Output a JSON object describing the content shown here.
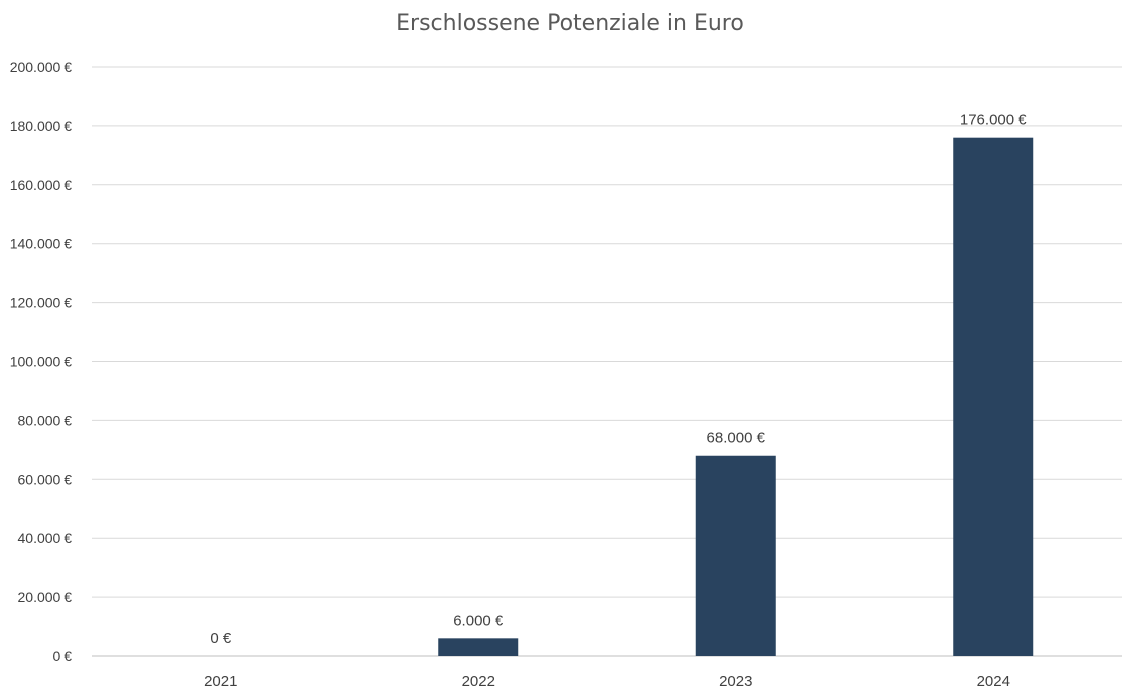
{
  "chart_data": {
    "type": "bar",
    "title": "Erschlossene Potenziale in Euro",
    "categories": [
      "2021",
      "2022",
      "2023",
      "2024"
    ],
    "values": [
      0,
      6000,
      68000,
      176000
    ],
    "data_labels": [
      "0 €",
      "6.000 €",
      "68.000 €",
      "176.000 €"
    ],
    "ylim": [
      0,
      200000
    ],
    "y_ticks": [
      {
        "value": 0,
        "label": "0 €"
      },
      {
        "value": 20000,
        "label": "20.000 €"
      },
      {
        "value": 40000,
        "label": "40.000 €"
      },
      {
        "value": 60000,
        "label": "60.000 €"
      },
      {
        "value": 80000,
        "label": "80.000 €"
      },
      {
        "value": 100000,
        "label": "100.000 €"
      },
      {
        "value": 120000,
        "label": "120.000 €"
      },
      {
        "value": 140000,
        "label": "140.000 €"
      },
      {
        "value": 160000,
        "label": "160.000 €"
      },
      {
        "value": 180000,
        "label": "180.000 €"
      },
      {
        "value": 200000,
        "label": "200.000 €"
      }
    ],
    "grid": true,
    "legend": "none",
    "bar_color": "#29435f"
  }
}
